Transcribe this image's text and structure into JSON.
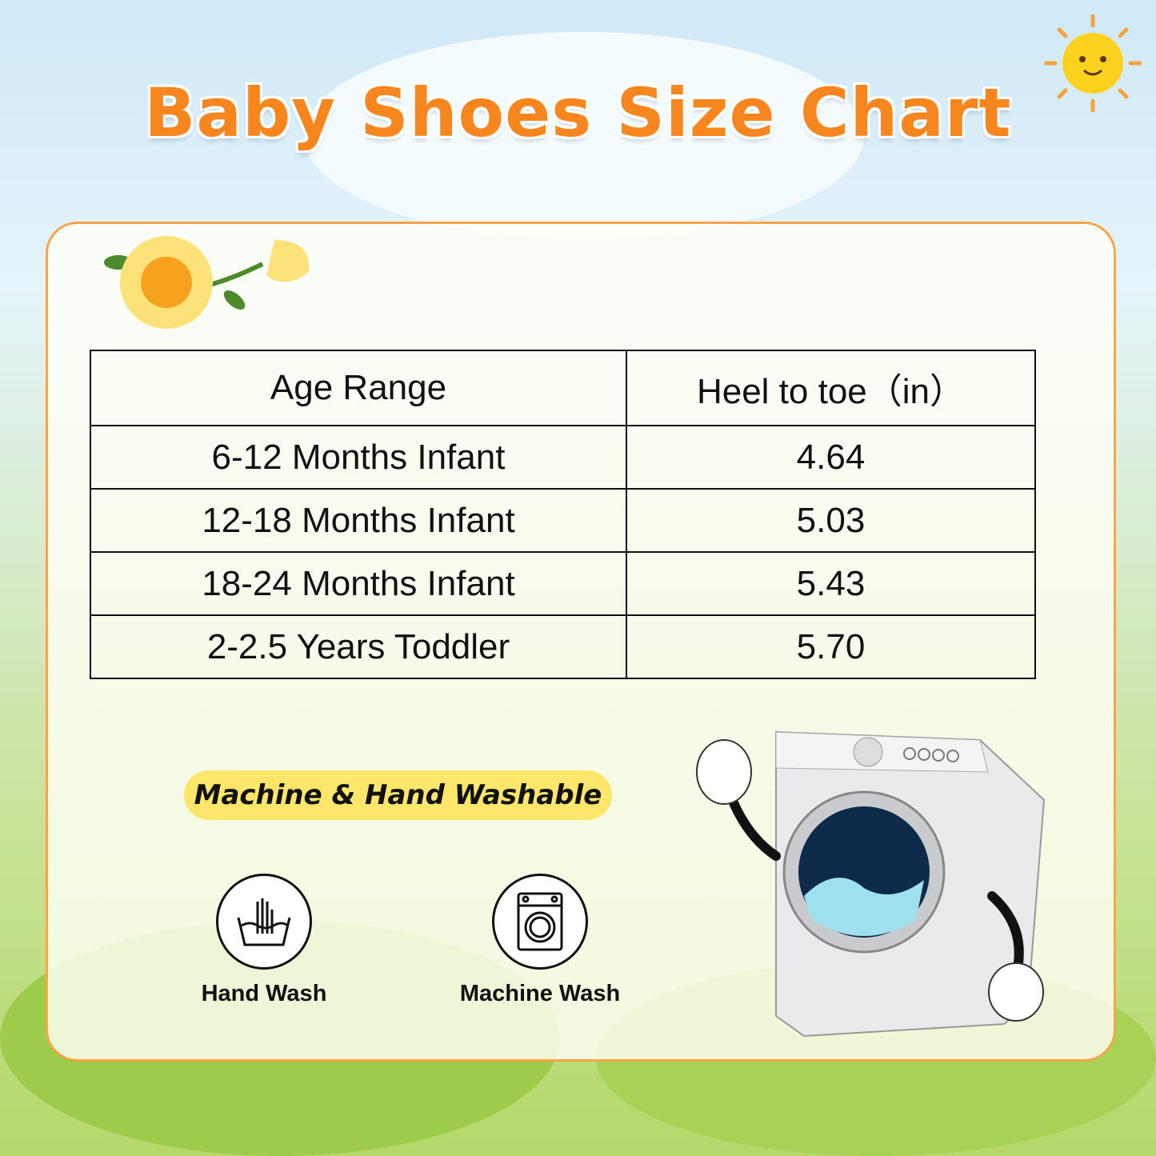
{
  "title": "Baby Shoes Size Chart",
  "table": {
    "headers": [
      "Age Range",
      "Heel to toe（in）"
    ],
    "rows": [
      [
        "6-12  Months Infant",
        "4.64"
      ],
      [
        "12-18  Months Infant",
        "5.03"
      ],
      [
        "18-24  Months Infant",
        "5.43"
      ],
      [
        "2-2.5  Years Toddler",
        "5.70"
      ]
    ]
  },
  "washable_label": "Machine & Hand Washable",
  "care": [
    {
      "icon": "hand-wash-icon",
      "label": "Hand Wash"
    },
    {
      "icon": "machine-wash-icon",
      "label": "Machine Wash"
    }
  ],
  "colors": {
    "title": "#f7861f",
    "card_border": "#f6a548",
    "pill": "#fde66a"
  }
}
